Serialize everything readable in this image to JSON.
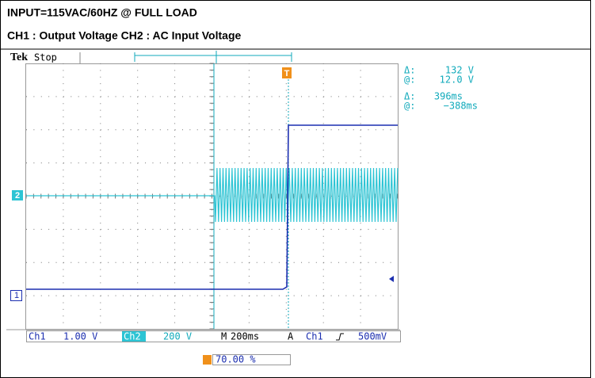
{
  "header": {
    "title": "INPUT=115VAC/60HZ @ FULL LOAD",
    "subtitle": "CH1 : Output Voltage CH2 : AC Input Voltage"
  },
  "scope": {
    "brand": "Tek",
    "status": "Stop",
    "trigger_marker": "T",
    "readouts": [
      {
        "label": "Δ:",
        "value": "132 V"
      },
      {
        "label": "@:",
        "value": "12.0 V"
      },
      {
        "label": "Δ:",
        "value": "396ms"
      },
      {
        "label": "@:",
        "value": "−388ms"
      }
    ],
    "channel_markers": [
      "2",
      "1"
    ],
    "status_bar": {
      "ch1": "Ch1",
      "ch1_scale": "1.00 V",
      "ch2": "Ch2",
      "ch2_scale": "200 V",
      "timebase_label": "M",
      "timebase": "200ms",
      "trigger_label": "A",
      "trigger_source": "Ch1",
      "trigger_level": "500mV"
    },
    "trigger_position": "70.00 %"
  }
}
